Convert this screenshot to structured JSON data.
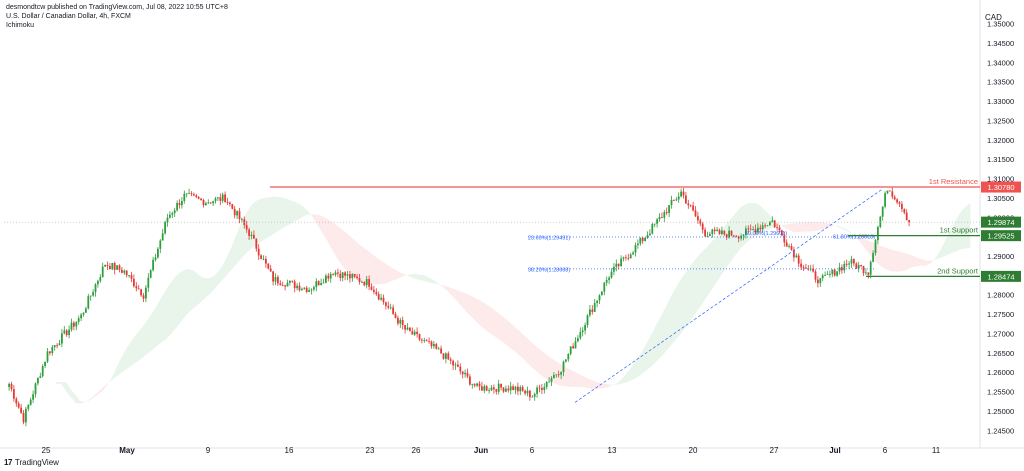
{
  "header": {
    "publisher_line": "desmondtcw published on TradingView.com, Jul 08, 2022 10:55 UTC+8",
    "symbol_line": "U.S. Dollar / Canadian Dollar, 4h, FXCM",
    "indicator_line": "Ichimoku"
  },
  "footer": {
    "brand": "TradingView"
  },
  "chart_data": {
    "type": "candlestick",
    "currency_label": "CAD",
    "y_ticks": [
      1.245,
      1.25,
      1.255,
      1.26,
      1.265,
      1.27,
      1.275,
      1.28,
      1.285,
      1.29,
      1.295,
      1.3,
      1.305,
      1.31,
      1.315,
      1.32,
      1.325,
      1.33,
      1.335,
      1.34,
      1.345,
      1.35
    ],
    "y_tick_labels": [
      "1.24500",
      "1.25000",
      "1.25500",
      "1.26000",
      "1.26500",
      "1.27000",
      "1.27500",
      "1.28000",
      "1.28500",
      "1.29000",
      "1.29500",
      "1.30000",
      "1.30500",
      "1.31000",
      "1.31500",
      "1.32000",
      "1.32500",
      "1.33000",
      "1.33500",
      "1.34000",
      "1.34500",
      "1.35000"
    ],
    "ylim": [
      1.2425,
      1.3535
    ],
    "x_labels": [
      "25",
      "May",
      "9",
      "16",
      "23",
      "26",
      "Jun",
      "6",
      "13",
      "20",
      "27",
      "Jul",
      "6",
      "11"
    ],
    "last_price": 1.29874,
    "levels": [
      {
        "name": "1st Resistance",
        "value": 1.3078,
        "label": "1.30780",
        "color": "#ef5350"
      },
      {
        "name": "1st Support",
        "value": 1.29525,
        "label": "1.29525",
        "color": "#2e7d32"
      },
      {
        "name": "2nd Support",
        "value": 1.28474,
        "label": "1.28474",
        "color": "#2e7d32"
      }
    ],
    "fib_labels": [
      {
        "text": "23.60%(1.29491)",
        "value": 1.29491
      },
      {
        "text": "38.20%(1.28668)",
        "value": 1.28668
      },
      {
        "text": "50.00%(1.29601)",
        "value": 1.29601
      },
      {
        "text": "61.80%(1.29513)",
        "value": 1.29513
      }
    ],
    "waypoints": [
      [
        0,
        1.257
      ],
      [
        6,
        1.248
      ],
      [
        16,
        1.265
      ],
      [
        30,
        1.2745
      ],
      [
        40,
        1.288
      ],
      [
        48,
        1.286
      ],
      [
        56,
        1.28
      ],
      [
        66,
        1.3
      ],
      [
        73,
        1.3055
      ],
      [
        82,
        1.304
      ],
      [
        90,
        1.305
      ],
      [
        100,
        1.296
      ],
      [
        110,
        1.284
      ],
      [
        125,
        1.2815
      ],
      [
        135,
        1.286
      ],
      [
        150,
        1.283
      ],
      [
        165,
        1.271
      ],
      [
        180,
        1.265
      ],
      [
        195,
        1.256
      ],
      [
        210,
        1.256
      ],
      [
        218,
        1.254
      ],
      [
        230,
        1.261
      ],
      [
        250,
        1.285
      ],
      [
        265,
        1.295
      ],
      [
        280,
        1.3065
      ],
      [
        290,
        1.296
      ],
      [
        305,
        1.2955
      ],
      [
        318,
        1.299
      ],
      [
        330,
        1.288
      ],
      [
        338,
        1.2835
      ],
      [
        350,
        1.2885
      ],
      [
        358,
        1.286
      ],
      [
        362,
        1.2975
      ],
      [
        366,
        1.3078
      ],
      [
        372,
        1.303
      ],
      [
        375,
        1.2987
      ]
    ],
    "last_bar_index": 375
  }
}
